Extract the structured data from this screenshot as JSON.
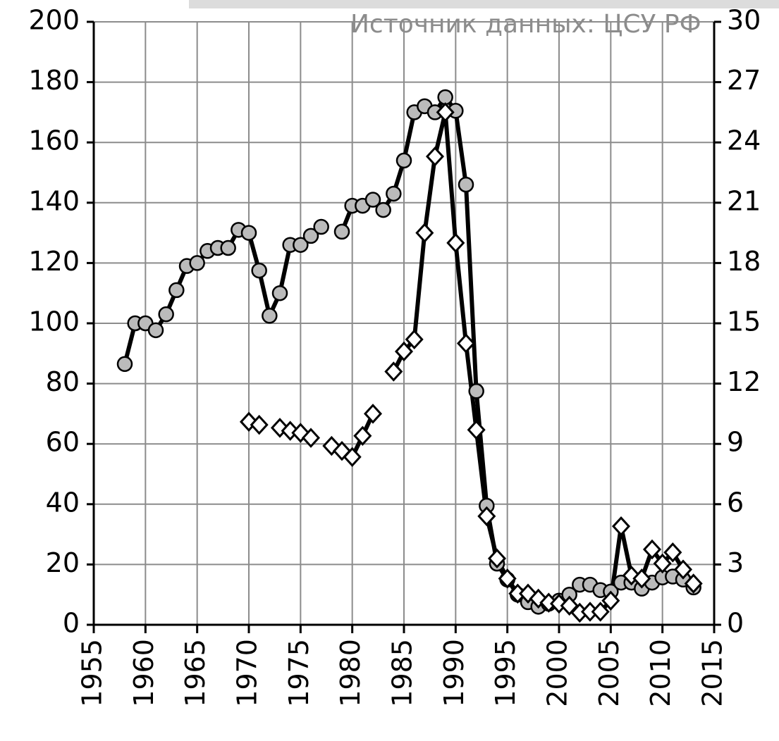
{
  "chart_data": {
    "type": "line",
    "annotation": "Источник данных: ЦСУ РФ",
    "x": [
      1958,
      1959,
      1960,
      1961,
      1962,
      1963,
      1964,
      1965,
      1966,
      1967,
      1968,
      1969,
      1970,
      1971,
      1972,
      1973,
      1974,
      1975,
      1976,
      1977,
      1978,
      1979,
      1980,
      1981,
      1982,
      1983,
      1984,
      1985,
      1986,
      1987,
      1988,
      1989,
      1990,
      1991,
      1992,
      1993,
      1994,
      1995,
      1996,
      1997,
      1998,
      1999,
      2000,
      2001,
      2002,
      2003,
      2004,
      2005,
      2006,
      2007,
      2008,
      2009,
      2010,
      2011,
      2012,
      2013
    ],
    "series": [
      {
        "color": "#bbbbbb",
        "marker": "circle",
        "axis": "y",
        "values": [
          86.5,
          100,
          100,
          97.7,
          103,
          111,
          119,
          120,
          124,
          125,
          125,
          131,
          130,
          117.5,
          102.5,
          110,
          126,
          126,
          129,
          132,
          null,
          130.4,
          139,
          139,
          141,
          137.6,
          143,
          154,
          170,
          172,
          170,
          175,
          170.5,
          146,
          77.5,
          39.5,
          20.3,
          15,
          10,
          7.5,
          6,
          7,
          8,
          10,
          13.3,
          13.3,
          11.5,
          11,
          14,
          14,
          12,
          14,
          15.7,
          16,
          15,
          12.4
        ]
      },
      {
        "color": "#ffffff",
        "marker": "diamond",
        "axis": "y2",
        "values": [
          null,
          null,
          null,
          null,
          null,
          null,
          null,
          null,
          null,
          null,
          null,
          null,
          10.1,
          9.95,
          null,
          9.8,
          9.65,
          9.55,
          9.3,
          null,
          8.9,
          8.65,
          8.35,
          9.4,
          10.5,
          null,
          12.6,
          13.6,
          14.2,
          19.5,
          23.3,
          25.5,
          19,
          14,
          9.7,
          5.4,
          3.3,
          2.3,
          1.55,
          1.55,
          1.3,
          1.1,
          1.05,
          0.95,
          0.6,
          0.65,
          0.65,
          1.2,
          4.9,
          2.45,
          2.3,
          3.75,
          3.05,
          3.6,
          2.75,
          2.05
        ]
      }
    ],
    "xlim": [
      1955,
      2015
    ],
    "xticks": [
      1955,
      1960,
      1965,
      1970,
      1975,
      1980,
      1985,
      1990,
      1995,
      2000,
      2005,
      2010,
      2015
    ],
    "ylim": [
      0,
      200
    ],
    "yticks": [
      0,
      20,
      40,
      60,
      80,
      100,
      120,
      140,
      160,
      180,
      200
    ],
    "y2lim": [
      0,
      30
    ],
    "y2ticks": [
      0,
      3,
      6,
      9,
      12,
      15,
      18,
      21,
      24,
      27,
      30
    ],
    "grid": true
  }
}
